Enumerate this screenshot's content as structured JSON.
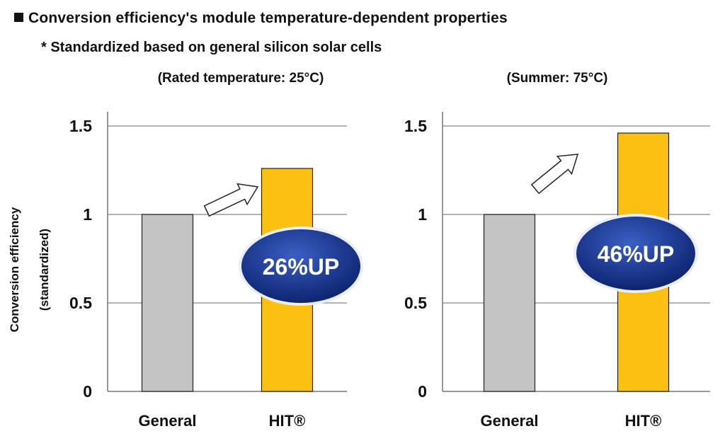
{
  "header": {
    "title": "Conversion efficiency's module temperature-dependent properties",
    "note": "* Standardized based on general silicon solar cells"
  },
  "y_axis": {
    "label_line1": "Conversion efficiency",
    "label_line2": "(standardized)"
  },
  "colors": {
    "general_bar": "#c3c3c3",
    "hit_bar": "#fbc012",
    "badge_dark": "#0d2470",
    "badge_light": "#3a5fc4",
    "gridline": "#9a9a9a"
  },
  "chart_data": [
    {
      "type": "bar",
      "subtitle": "(Rated temperature: 25°C)",
      "categories": [
        "General",
        "HIT®"
      ],
      "values": [
        1.0,
        1.26
      ],
      "ylim": [
        0,
        1.5
      ],
      "yticks": [
        "0",
        "0.5",
        "1",
        "1.5"
      ],
      "ytick_values": [
        0,
        0.5,
        1,
        1.5
      ],
      "grid": true,
      "annotation": "26%UP"
    },
    {
      "type": "bar",
      "subtitle": "(Summer: 75°C)",
      "categories": [
        "General",
        "HIT®"
      ],
      "values": [
        1.0,
        1.46
      ],
      "ylim": [
        0,
        1.5
      ],
      "yticks": [
        "0",
        "0.5",
        "1",
        "1.5"
      ],
      "ytick_values": [
        0,
        0.5,
        1,
        1.5
      ],
      "grid": true,
      "annotation": "46%UP"
    }
  ]
}
